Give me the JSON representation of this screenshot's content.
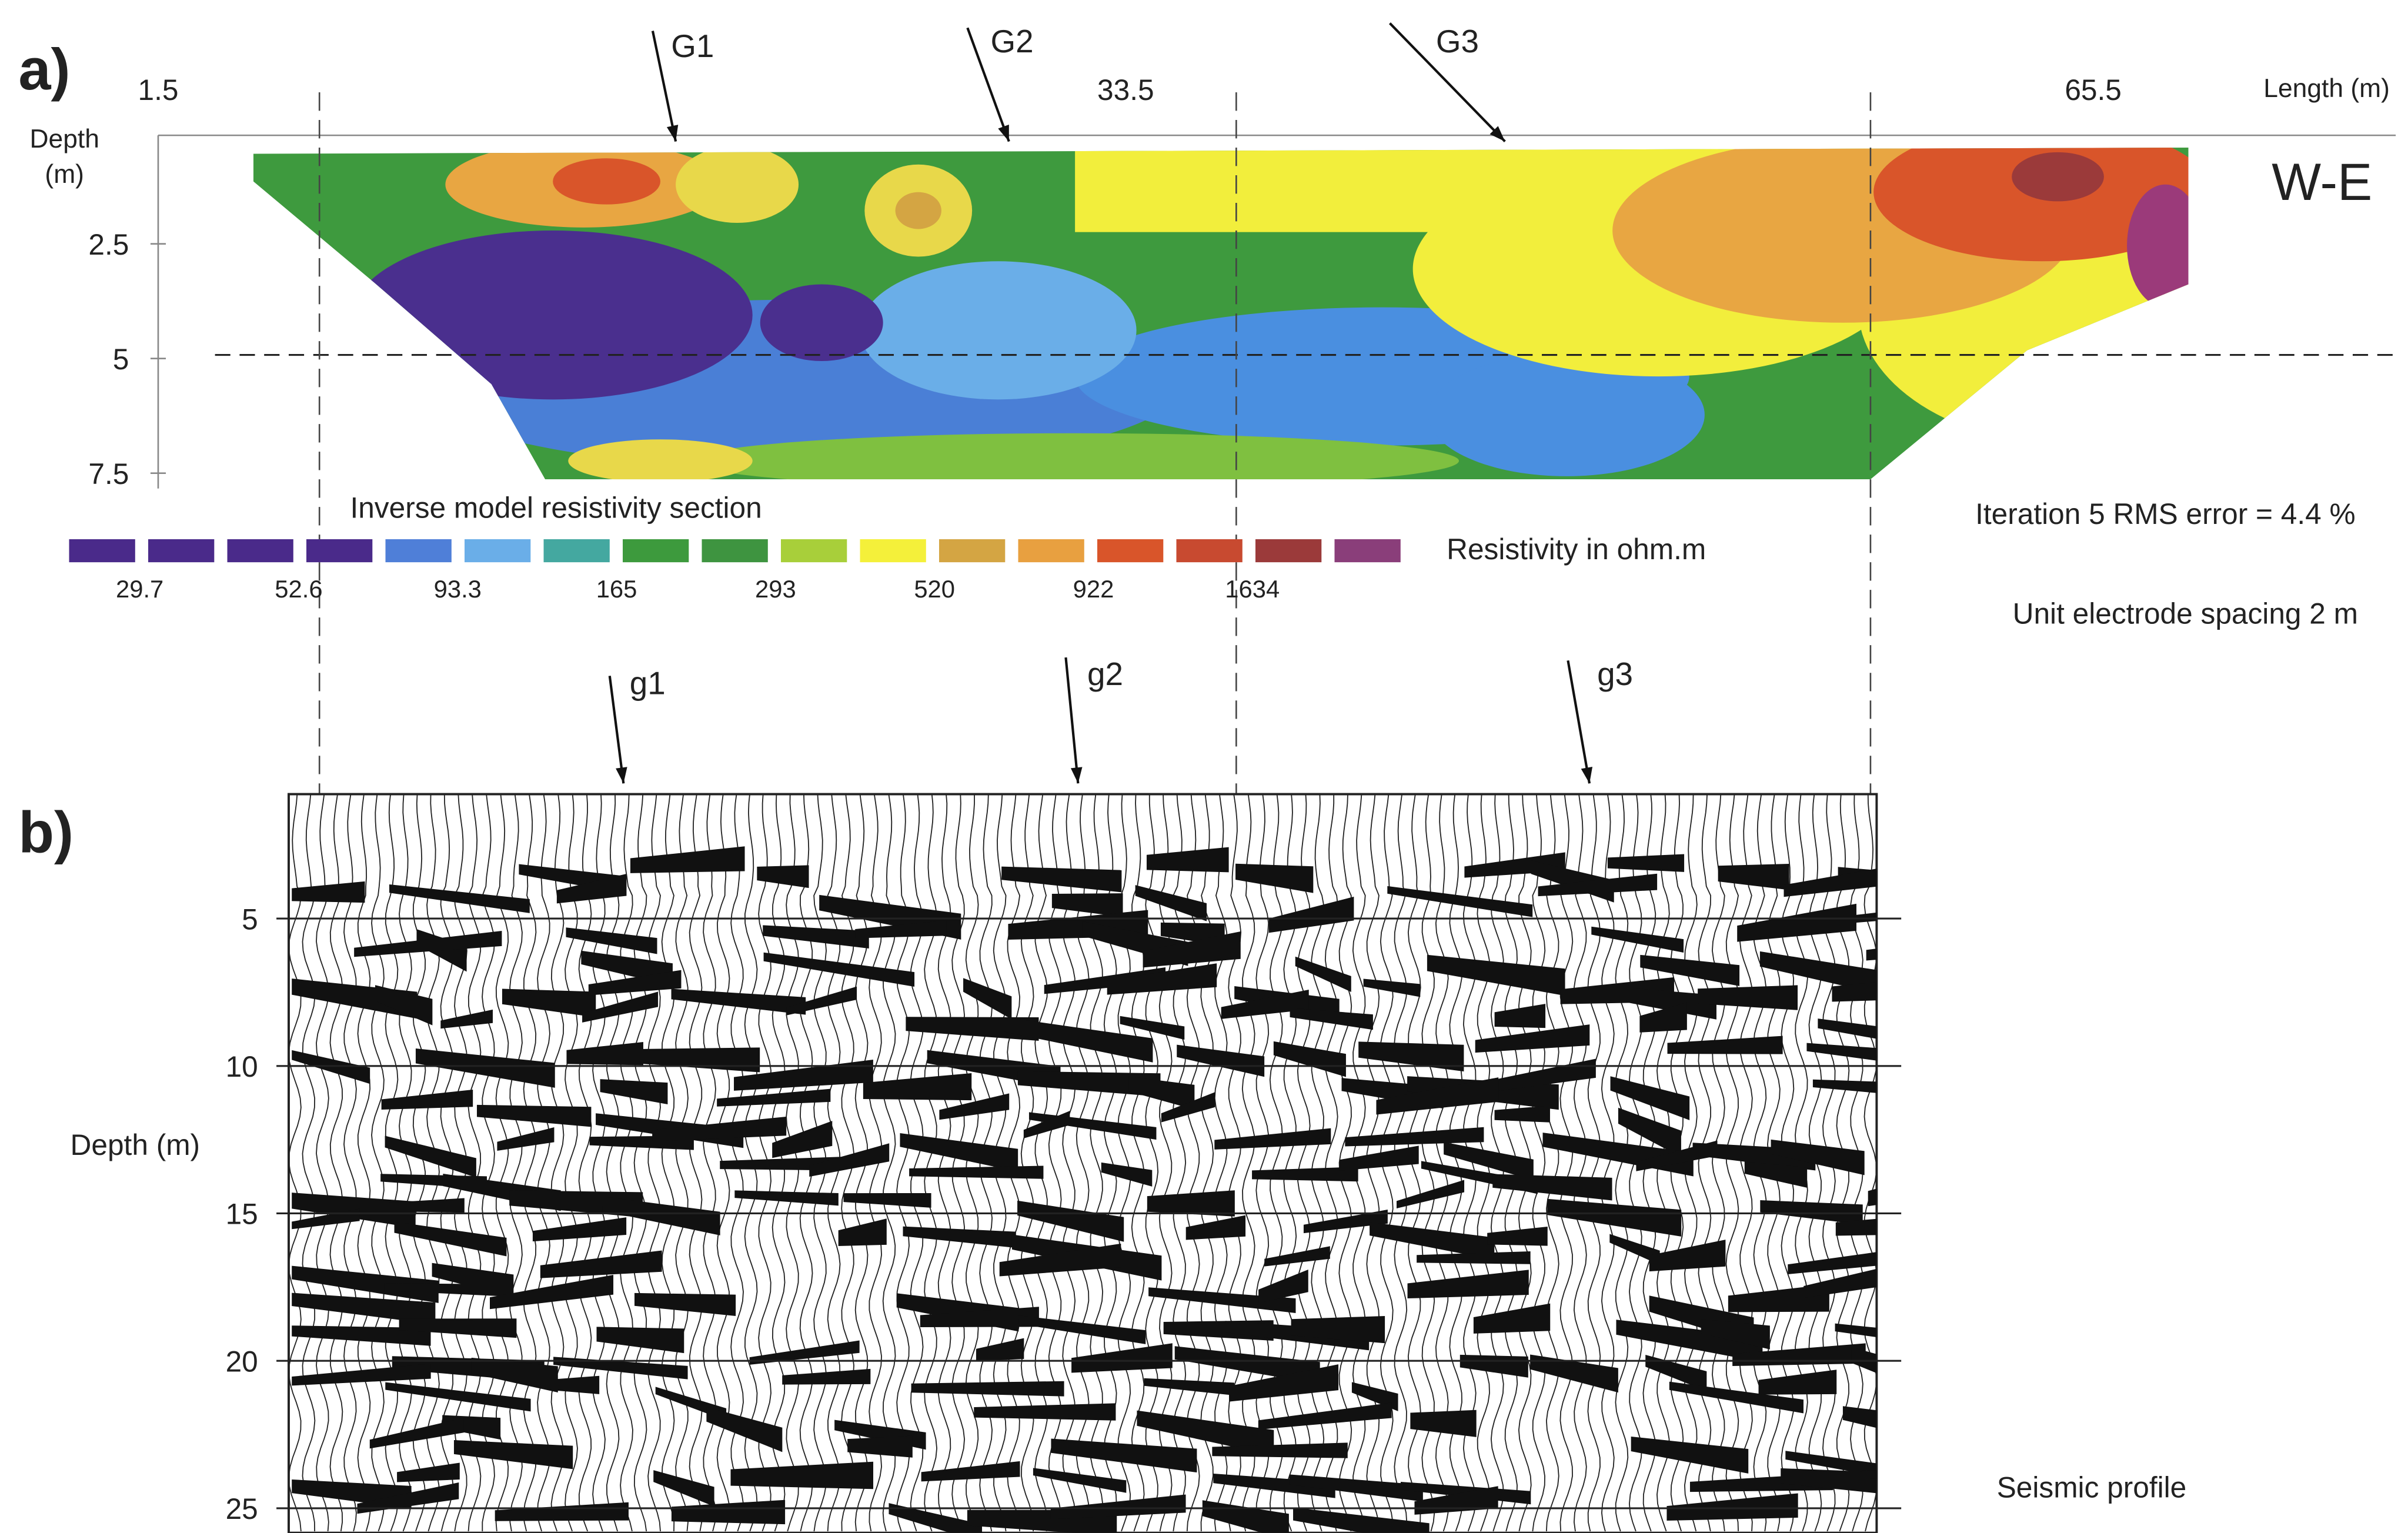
{
  "panel_a": {
    "label": "a)",
    "depth_label": [
      "Depth",
      "(m)"
    ],
    "length_label": "Length (m)",
    "x_ticks": [
      1.5,
      33.5,
      65.5
    ],
    "depth_ticks": [
      2.5,
      5,
      7.5
    ],
    "orientation": "W-E",
    "section_title": "Inverse model resistivity section",
    "colorbar_title": "Resistivity in ohm.m",
    "colorbar_labels": [
      29.7,
      52.6,
      93.3,
      165,
      293,
      520,
      922,
      1634
    ],
    "iteration_note": "Iteration 5 RMS error = 4.4 %",
    "spacing_note": "Unit electrode spacing 2 m",
    "markers": [
      "G1",
      "G2",
      "G3"
    ]
  },
  "panel_b": {
    "label": "b)",
    "depth_label": "Depth (m)",
    "depth_ticks": [
      5,
      10,
      15,
      20,
      25
    ],
    "markers": [
      "g1",
      "g2",
      "g3"
    ],
    "caption": "Seismic profile"
  }
}
